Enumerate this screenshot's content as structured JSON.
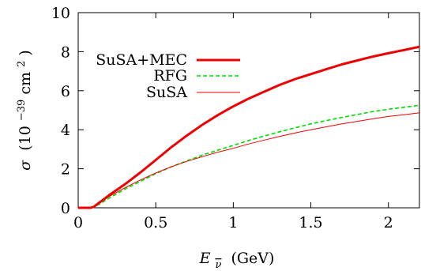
{
  "chart_data": {
    "type": "line",
    "title": "",
    "xlabel": {
      "symbol": "E",
      "subscript": "ν",
      "unit": "(GeV)"
    },
    "ylabel": {
      "symbol": "σ",
      "unit_prefix": "(10",
      "unit_exp": "−39",
      "unit_mid": " cm",
      "unit_exp2": "2",
      "unit_suffix": ")"
    },
    "xlim": [
      0,
      2.2
    ],
    "ylim": [
      0,
      10
    ],
    "xticks": [
      {
        "value": 0,
        "label": "0"
      },
      {
        "value": 0.5,
        "label": "0.5"
      },
      {
        "value": 1,
        "label": "1"
      },
      {
        "value": 1.5,
        "label": "1.5"
      },
      {
        "value": 2,
        "label": "2"
      }
    ],
    "yticks": [
      {
        "value": 0,
        "label": "0"
      },
      {
        "value": 2,
        "label": "2"
      },
      {
        "value": 4,
        "label": "4"
      },
      {
        "value": 6,
        "label": "6"
      },
      {
        "value": 8,
        "label": "8"
      },
      {
        "value": 10,
        "label": "10"
      }
    ],
    "grid": false,
    "legend_position": "upper-left",
    "series": [
      {
        "name": "SuSA+MEC",
        "color": "#ee0000",
        "style": "solid-thick",
        "x": [
          0,
          0.08,
          0.1,
          0.15,
          0.2,
          0.3,
          0.4,
          0.5,
          0.6,
          0.7,
          0.8,
          0.9,
          1.0,
          1.1,
          1.2,
          1.3,
          1.4,
          1.5,
          1.6,
          1.7,
          1.8,
          1.9,
          2.0,
          2.1,
          2.2
        ],
        "y": [
          0,
          0,
          0.05,
          0.35,
          0.65,
          1.2,
          1.8,
          2.45,
          3.1,
          3.7,
          4.25,
          4.75,
          5.2,
          5.6,
          5.95,
          6.3,
          6.6,
          6.85,
          7.1,
          7.35,
          7.55,
          7.75,
          7.92,
          8.08,
          8.25
        ]
      },
      {
        "name": "RFG",
        "color": "#00dd00",
        "style": "dashed",
        "x": [
          0,
          0.08,
          0.1,
          0.15,
          0.2,
          0.3,
          0.4,
          0.5,
          0.6,
          0.7,
          0.8,
          0.9,
          1.0,
          1.1,
          1.2,
          1.3,
          1.4,
          1.5,
          1.6,
          1.7,
          1.8,
          1.9,
          2.0,
          2.1,
          2.2
        ],
        "y": [
          0,
          0,
          0.03,
          0.25,
          0.5,
          0.95,
          1.35,
          1.75,
          2.1,
          2.4,
          2.7,
          2.95,
          3.2,
          3.45,
          3.68,
          3.9,
          4.1,
          4.3,
          4.47,
          4.63,
          4.78,
          4.93,
          5.05,
          5.15,
          5.25
        ]
      },
      {
        "name": "SuSA",
        "color": "#ee0000",
        "style": "solid-thin",
        "x": [
          0,
          0.08,
          0.1,
          0.15,
          0.2,
          0.3,
          0.4,
          0.5,
          0.6,
          0.7,
          0.8,
          0.9,
          1.0,
          1.1,
          1.2,
          1.3,
          1.4,
          1.5,
          1.6,
          1.7,
          1.8,
          1.9,
          2.0,
          2.1,
          2.2
        ],
        "y": [
          0,
          0,
          0.05,
          0.3,
          0.58,
          1.02,
          1.42,
          1.78,
          2.1,
          2.38,
          2.62,
          2.85,
          3.05,
          3.27,
          3.47,
          3.66,
          3.84,
          4.0,
          4.15,
          4.3,
          4.43,
          4.56,
          4.68,
          4.77,
          4.87
        ]
      }
    ]
  }
}
